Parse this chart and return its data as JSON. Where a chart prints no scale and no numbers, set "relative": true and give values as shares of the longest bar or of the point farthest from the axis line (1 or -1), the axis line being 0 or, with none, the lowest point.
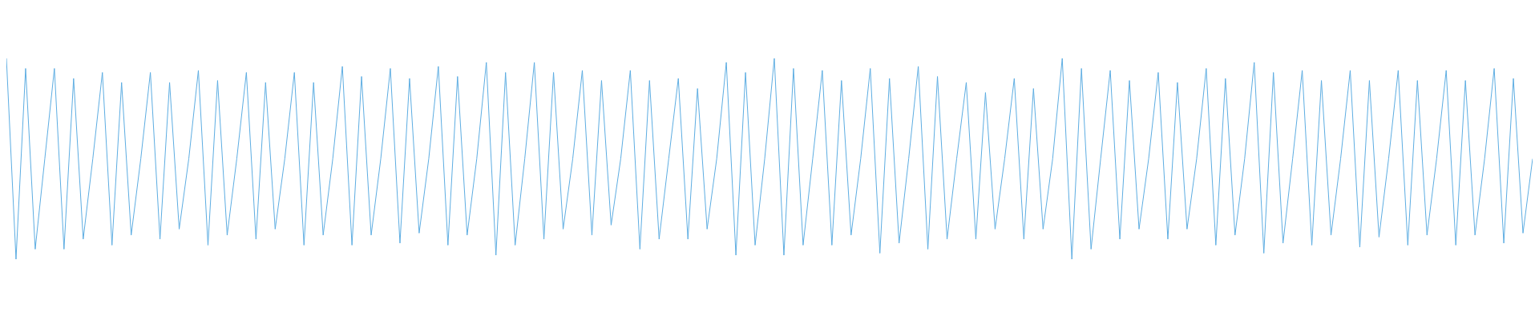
{
  "chart_data": {
    "type": "line",
    "relative": true,
    "categories": [
      null,
      null,
      null,
      null,
      null,
      null,
      null,
      null,
      null,
      null,
      null,
      null,
      null,
      null,
      null,
      null,
      null,
      null,
      null,
      null,
      null,
      null,
      null,
      null,
      null,
      null,
      null,
      null,
      null,
      null,
      null,
      null,
      null,
      null,
      null,
      null,
      null,
      null,
      null,
      null,
      null,
      null,
      null,
      null,
      null,
      null,
      null,
      null,
      null,
      null,
      null,
      null,
      null,
      null,
      null,
      null,
      null,
      null,
      null,
      null,
      null,
      null,
      null,
      null,
      null,
      null,
      null,
      null,
      null,
      null,
      null,
      null,
      null,
      null,
      null,
      null,
      null,
      null,
      null,
      null,
      null,
      null,
      null,
      null,
      null,
      null,
      null,
      null,
      null,
      null,
      null,
      null,
      null,
      null,
      null,
      null,
      null,
      null,
      null,
      null,
      null,
      null,
      null,
      null,
      null,
      null,
      null,
      null,
      null,
      null,
      null,
      null,
      null,
      null,
      null,
      null,
      null,
      null,
      null,
      null,
      null,
      null,
      null,
      null,
      null,
      null,
      null,
      null,
      null,
      null,
      null,
      null,
      null,
      null,
      null,
      null,
      null,
      null,
      null,
      null,
      null,
      null,
      null,
      null,
      null,
      null,
      null,
      null,
      null,
      null,
      null,
      null,
      null,
      null,
      null,
      null,
      null,
      null,
      null,
      null
    ],
    "series": [
      {
        "color": "#5dade2",
        "values": [
          1.0,
          0.0,
          0.95,
          0.05,
          0.5,
          0.95,
          0.05,
          0.9,
          0.1,
          0.5,
          0.93,
          0.07,
          0.88,
          0.12,
          0.5,
          0.93,
          0.1,
          0.88,
          0.15,
          0.5,
          0.94,
          0.07,
          0.89,
          0.12,
          0.5,
          0.93,
          0.1,
          0.88,
          0.15,
          0.5,
          0.93,
          0.07,
          0.88,
          0.12,
          0.5,
          0.96,
          0.07,
          0.91,
          0.12,
          0.5,
          0.95,
          0.08,
          0.9,
          0.13,
          0.5,
          0.96,
          0.07,
          0.91,
          0.12,
          0.5,
          0.98,
          0.02,
          0.93,
          0.07,
          0.5,
          0.98,
          0.1,
          0.93,
          0.15,
          0.5,
          0.94,
          0.12,
          0.89,
          0.17,
          0.5,
          0.94,
          0.05,
          0.89,
          0.1,
          0.5,
          0.9,
          0.1,
          0.85,
          0.15,
          0.5,
          0.98,
          0.02,
          0.93,
          0.07,
          0.5,
          1.0,
          0.02,
          0.95,
          0.07,
          0.5,
          0.94,
          0.07,
          0.89,
          0.12,
          0.5,
          0.95,
          0.03,
          0.9,
          0.08,
          0.5,
          0.96,
          0.05,
          0.91,
          0.1,
          0.5,
          0.88,
          0.1,
          0.83,
          0.15,
          0.5,
          0.9,
          0.1,
          0.85,
          0.15,
          0.5,
          1.0,
          0.0,
          0.95,
          0.05,
          0.5,
          0.94,
          0.1,
          0.89,
          0.15,
          0.5,
          0.93,
          0.1,
          0.88,
          0.15,
          0.5,
          0.95,
          0.07,
          0.9,
          0.12,
          0.5,
          0.98,
          0.03,
          0.93,
          0.08,
          0.5,
          0.94,
          0.07,
          0.89,
          0.12,
          0.5,
          0.94,
          0.06,
          0.89,
          0.11,
          0.5,
          0.94,
          0.07,
          0.89,
          0.12,
          0.5,
          0.94,
          0.07,
          0.89,
          0.12,
          0.5,
          0.95,
          0.08,
          0.9,
          0.13,
          0.5
        ]
      }
    ]
  }
}
